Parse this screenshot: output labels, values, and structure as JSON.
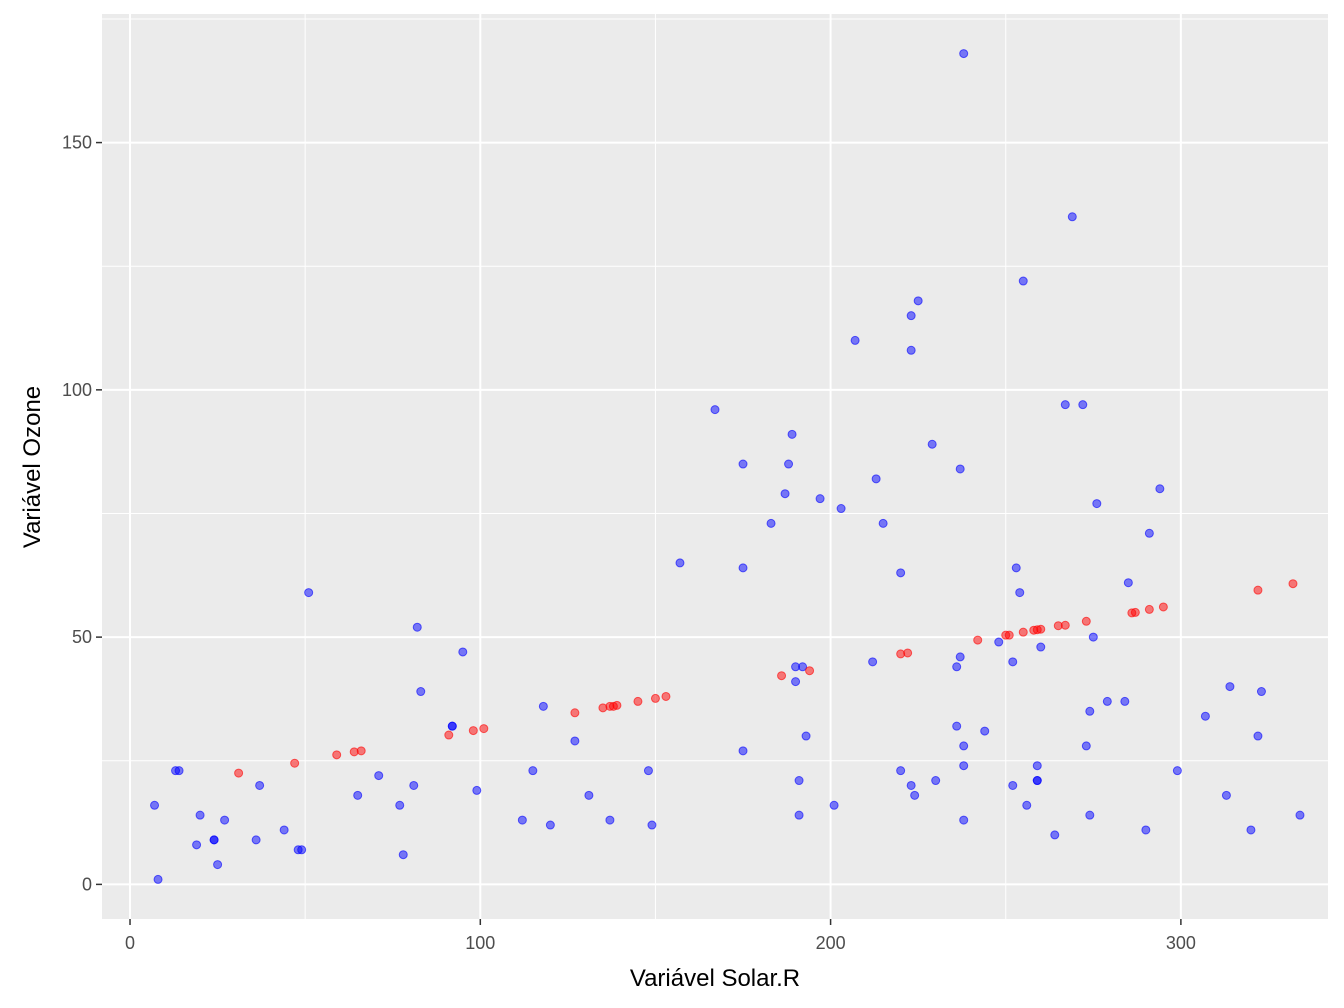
{
  "chart_data": {
    "type": "scatter",
    "xlabel": "Variável Solar.R",
    "ylabel": "Variável Ozone",
    "xlim": [
      -8,
      342
    ],
    "ylim": [
      -7,
      176
    ],
    "x_ticks": [
      0,
      100,
      200,
      300
    ],
    "y_ticks": [
      0,
      50,
      100,
      150
    ],
    "grid": true,
    "colors": {
      "panel": "#ebebeb",
      "grid": "#ffffff",
      "observed": "#0000ff",
      "predicted": "#ff0000"
    },
    "series": [
      {
        "color": "#0000ff",
        "points": [
          [
            7,
            16
          ],
          [
            8,
            1
          ],
          [
            13,
            23
          ],
          [
            14,
            23
          ],
          [
            19,
            8
          ],
          [
            20,
            14
          ],
          [
            24,
            9
          ],
          [
            24,
            9
          ],
          [
            25,
            4
          ],
          [
            27,
            13
          ],
          [
            36,
            9
          ],
          [
            37,
            20
          ],
          [
            44,
            11
          ],
          [
            48,
            7
          ],
          [
            49,
            7
          ],
          [
            51,
            59
          ],
          [
            65,
            18
          ],
          [
            71,
            22
          ],
          [
            77,
            16
          ],
          [
            78,
            6
          ],
          [
            81,
            20
          ],
          [
            82,
            52
          ],
          [
            83,
            39
          ],
          [
            92,
            32
          ],
          [
            92,
            32
          ],
          [
            95,
            47
          ],
          [
            99,
            19
          ],
          [
            112,
            13
          ],
          [
            115,
            23
          ],
          [
            118,
            36
          ],
          [
            120,
            12
          ],
          [
            127,
            29
          ],
          [
            131,
            18
          ],
          [
            137,
            13
          ],
          [
            148,
            23
          ],
          [
            149,
            12
          ],
          [
            157,
            65
          ],
          [
            167,
            96
          ],
          [
            175,
            85
          ],
          [
            175,
            64
          ],
          [
            175,
            27
          ],
          [
            183,
            73
          ],
          [
            187,
            79
          ],
          [
            188,
            85
          ],
          [
            189,
            91
          ],
          [
            190,
            41
          ],
          [
            190,
            44
          ],
          [
            191,
            21
          ],
          [
            191,
            14
          ],
          [
            192,
            44
          ],
          [
            193,
            30
          ],
          [
            197,
            78
          ],
          [
            201,
            16
          ],
          [
            203,
            76
          ],
          [
            207,
            110
          ],
          [
            212,
            45
          ],
          [
            213,
            82
          ],
          [
            215,
            73
          ],
          [
            220,
            63
          ],
          [
            220,
            23
          ],
          [
            223,
            115
          ],
          [
            223,
            108
          ],
          [
            223,
            20
          ],
          [
            224,
            18
          ],
          [
            225,
            118
          ],
          [
            229,
            89
          ],
          [
            230,
            21
          ],
          [
            236,
            32
          ],
          [
            236,
            44
          ],
          [
            237,
            46
          ],
          [
            237,
            84
          ],
          [
            238,
            168
          ],
          [
            238,
            28
          ],
          [
            238,
            24
          ],
          [
            238,
            13
          ],
          [
            244,
            31
          ],
          [
            248,
            49
          ],
          [
            252,
            45
          ],
          [
            252,
            20
          ],
          [
            253,
            64
          ],
          [
            254,
            59
          ],
          [
            255,
            122
          ],
          [
            256,
            16
          ],
          [
            259,
            21
          ],
          [
            259,
            21
          ],
          [
            259,
            24
          ],
          [
            260,
            48
          ],
          [
            264,
            10
          ],
          [
            267,
            97
          ],
          [
            269,
            135
          ],
          [
            272,
            97
          ],
          [
            273,
            28
          ],
          [
            274,
            35
          ],
          [
            274,
            14
          ],
          [
            275,
            50
          ],
          [
            276,
            77
          ],
          [
            279,
            37
          ],
          [
            284,
            37
          ],
          [
            285,
            61
          ],
          [
            290,
            11
          ],
          [
            291,
            71
          ],
          [
            294,
            80
          ],
          [
            299,
            23
          ],
          [
            307,
            34
          ],
          [
            313,
            18
          ],
          [
            314,
            40
          ],
          [
            320,
            11
          ],
          [
            322,
            30
          ],
          [
            323,
            39
          ],
          [
            334,
            14
          ]
        ]
      },
      {
        "color": "#ff0000",
        "points": [
          [
            31,
            22.5
          ],
          [
            47,
            24.5
          ],
          [
            59,
            26.2
          ],
          [
            64,
            26.8
          ],
          [
            66,
            27
          ],
          [
            91,
            30.2
          ],
          [
            98,
            31.1
          ],
          [
            101,
            31.5
          ],
          [
            127,
            34.7
          ],
          [
            135,
            35.7
          ],
          [
            137,
            36
          ],
          [
            138,
            36
          ],
          [
            139,
            36.2
          ],
          [
            145,
            37
          ],
          [
            150,
            37.6
          ],
          [
            153,
            38
          ],
          [
            186,
            42.2
          ],
          [
            194,
            43.2
          ],
          [
            220,
            46.6
          ],
          [
            222,
            46.8
          ],
          [
            242,
            49.4
          ],
          [
            250,
            50.4
          ],
          [
            251,
            50.4
          ],
          [
            255,
            51
          ],
          [
            258,
            51.4
          ],
          [
            259,
            51.5
          ],
          [
            260,
            51.6
          ],
          [
            265,
            52.3
          ],
          [
            267,
            52.4
          ],
          [
            273,
            53.2
          ],
          [
            286,
            54.9
          ],
          [
            287,
            55
          ],
          [
            291,
            55.6
          ],
          [
            295,
            56.1
          ],
          [
            322,
            59.5
          ],
          [
            332,
            60.8
          ]
        ]
      }
    ]
  }
}
